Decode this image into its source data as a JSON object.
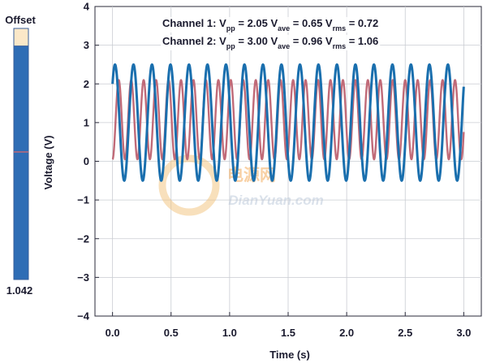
{
  "offset_panel": {
    "label": "Offset",
    "value_label": "1.042",
    "level_fraction": 0.93
  },
  "watermark": {
    "cn": "电源网",
    "en": "DianYuan.com"
  },
  "chart_data": {
    "type": "line",
    "xlabel": "Time (s)",
    "ylabel": "Voltage (V)",
    "xlim": [
      -0.15,
      3.15
    ],
    "ylim": [
      -4,
      4
    ],
    "x_ticks": [
      0.0,
      0.5,
      1.0,
      1.5,
      2.0,
      2.5,
      3.0
    ],
    "x_tick_labels": [
      "0.0",
      "0.5",
      "1.0",
      "1.5",
      "2.0",
      "2.5",
      "3.0"
    ],
    "y_ticks": [
      -4,
      -3,
      -2,
      -1,
      0,
      1,
      2,
      3,
      4
    ],
    "y_tick_labels": [
      "−4",
      "−3",
      "−2",
      "−1",
      "0",
      "1",
      "2",
      "3",
      "4"
    ],
    "grid": true,
    "annotations": [
      {
        "parts": [
          {
            "t": "Channel 1: V"
          },
          {
            "t": "pp",
            "sub": true
          },
          {
            "t": " = 2.05   V"
          },
          {
            "t": "ave",
            "sub": true
          },
          {
            "t": " = 0.65   V"
          },
          {
            "t": "rms",
            "sub": true
          },
          {
            "t": " = 0.72"
          }
        ]
      },
      {
        "parts": [
          {
            "t": "Channel 2: V"
          },
          {
            "t": "pp",
            "sub": true
          },
          {
            "t": " = 3.00   V"
          },
          {
            "t": "ave",
            "sub": true
          },
          {
            "t": " = 0.96   V"
          },
          {
            "t": "rms",
            "sub": true
          },
          {
            "t": " = 1.06"
          }
        ]
      }
    ],
    "series": [
      {
        "color": "#c06a78",
        "waveform": "sine",
        "x_start": 0.0,
        "x_end": 3.0,
        "frequency_hz": 9.4,
        "min": 0.05,
        "max": 2.1,
        "start_level": 0.05
      },
      {
        "color": "#1a6fae",
        "waveform": "sine",
        "x_start": 0.0,
        "x_end": 3.0,
        "frequency_hz": 6.33,
        "min": -0.5,
        "max": 2.5,
        "start_level": 2.0
      }
    ]
  }
}
